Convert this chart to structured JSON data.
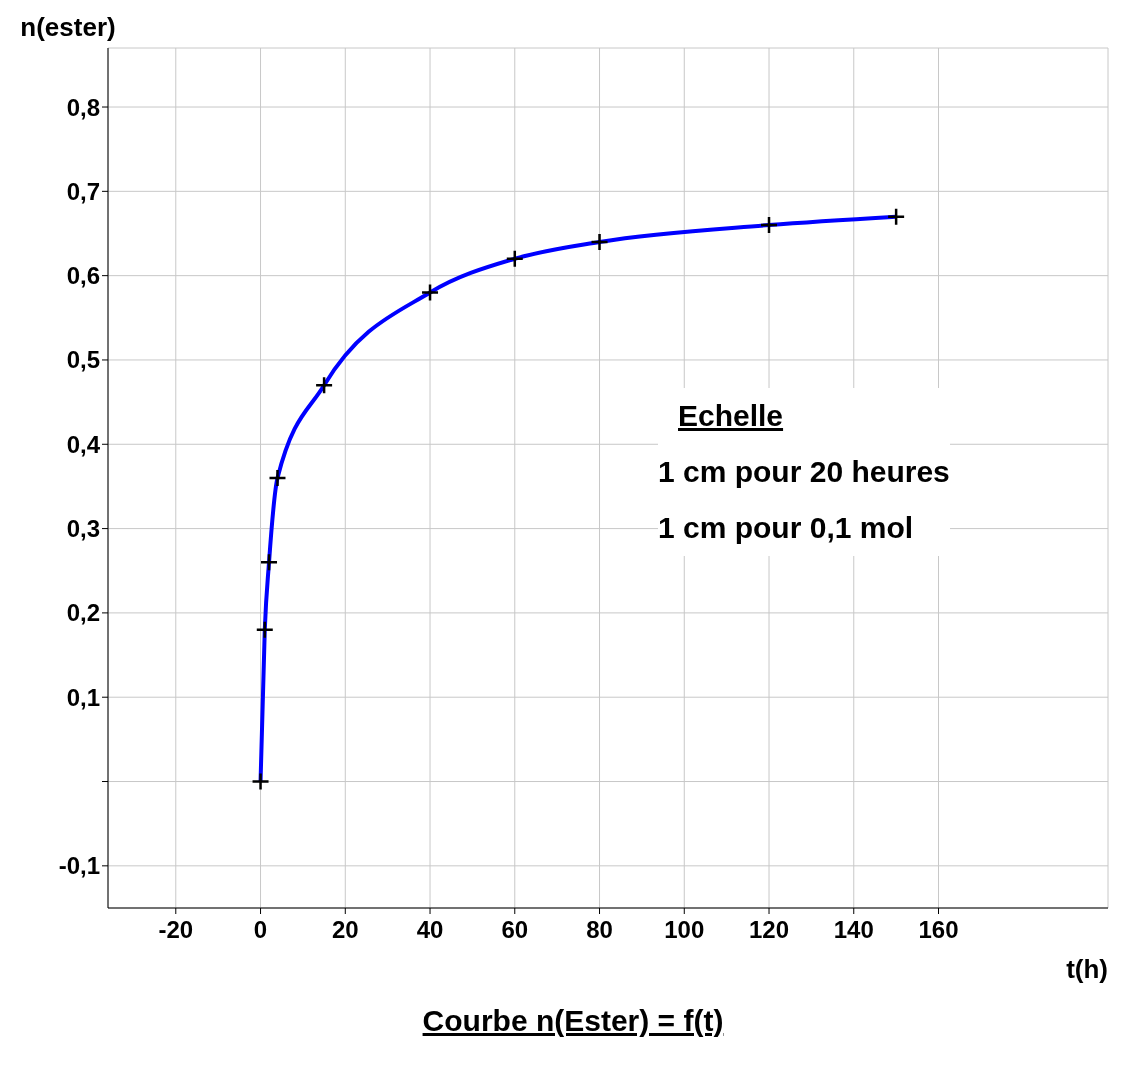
{
  "chart_data": {
    "type": "line",
    "title": "Courbe n(Ester) = f(t)",
    "xlabel": "t(h)",
    "ylabel": "n(ester)",
    "annotations": [
      "Echelle",
      "1 cm pour 20 heures",
      "1 cm pour 0,1 mol"
    ],
    "x": [
      0,
      1,
      2,
      4,
      15,
      40,
      60,
      80,
      120,
      150
    ],
    "series": [
      {
        "color": "#0000ff",
        "values": [
          0,
          0.18,
          0.26,
          0.36,
          0.47,
          0.58,
          0.62,
          0.64,
          0.66,
          0.67
        ]
      }
    ],
    "xlim": [
      -36,
      200
    ],
    "xticks": [
      -20,
      0,
      20,
      40,
      60,
      80,
      100,
      120,
      140,
      160
    ],
    "ylim": [
      -0.15,
      0.87
    ],
    "yticks": [
      {
        "value": -0.1,
        "label": "-0,1"
      },
      {
        "value": 0,
        "label": null
      },
      {
        "value": 0.1,
        "label": "0,1"
      },
      {
        "value": 0.2,
        "label": "0,2"
      },
      {
        "value": 0.3,
        "label": "0,3"
      },
      {
        "value": 0.4,
        "label": "0,4"
      },
      {
        "value": 0.5,
        "label": "0,5"
      },
      {
        "value": 0.6,
        "label": "0,6"
      },
      {
        "value": 0.7,
        "label": "0,7"
      },
      {
        "value": 0.8,
        "label": "0,8"
      }
    ],
    "grid": true,
    "marker": "cross",
    "line_style": "solid"
  }
}
